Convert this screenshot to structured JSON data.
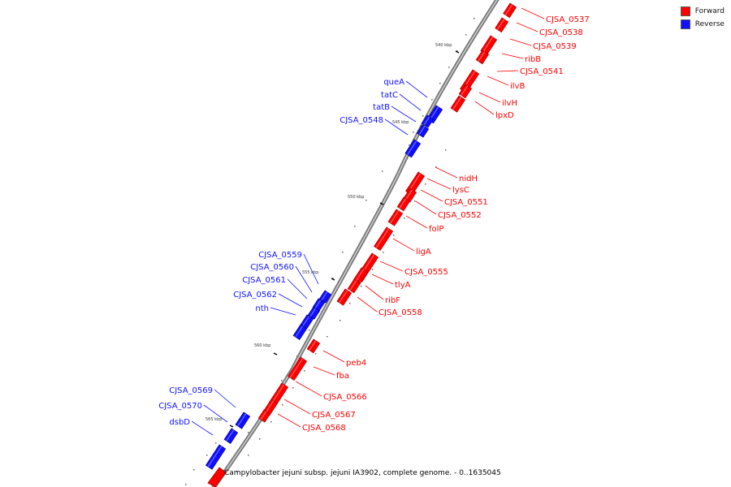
{
  "title": "Campylobacter jejuni subsp. jejuni IA3902, complete genome. - 0..1635045",
  "legend": [
    {
      "name": "Forward",
      "color": "#ff0000"
    },
    {
      "name": "Reverse",
      "color": "#1010ff"
    }
  ],
  "colors": {
    "forward": "#ff0000",
    "reverse": "#1010ff",
    "backbone": "#777777"
  },
  "ticks": [
    {
      "label": "540 kbp"
    },
    {
      "label": "545 kbp"
    },
    {
      "label": "550 kbp"
    },
    {
      "label": "555 kbp"
    },
    {
      "label": "560 kbp"
    },
    {
      "label": "565 kbp"
    }
  ],
  "genes": [
    {
      "name": "CJSA_0537",
      "strand": "forward"
    },
    {
      "name": "CJSA_0538",
      "strand": "forward"
    },
    {
      "name": "CJSA_0539",
      "strand": "forward"
    },
    {
      "name": "ribB",
      "strand": "forward"
    },
    {
      "name": "CJSA_0541",
      "strand": "forward"
    },
    {
      "name": "ilvB",
      "strand": "forward"
    },
    {
      "name": "ilvH",
      "strand": "forward"
    },
    {
      "name": "lpxD",
      "strand": "forward"
    },
    {
      "name": "queA",
      "strand": "reverse"
    },
    {
      "name": "tatC",
      "strand": "reverse"
    },
    {
      "name": "tatB",
      "strand": "reverse"
    },
    {
      "name": "CJSA_0548",
      "strand": "reverse"
    },
    {
      "name": "nidH",
      "strand": "forward"
    },
    {
      "name": "lysC",
      "strand": "forward"
    },
    {
      "name": "CJSA_0551",
      "strand": "forward"
    },
    {
      "name": "CJSA_0552",
      "strand": "forward"
    },
    {
      "name": "folP",
      "strand": "forward"
    },
    {
      "name": "ligA",
      "strand": "forward"
    },
    {
      "name": "CJSA_0555",
      "strand": "forward"
    },
    {
      "name": "tlyA",
      "strand": "forward"
    },
    {
      "name": "ribF",
      "strand": "forward"
    },
    {
      "name": "CJSA_0558",
      "strand": "forward"
    },
    {
      "name": "CJSA_0559",
      "strand": "reverse"
    },
    {
      "name": "CJSA_0560",
      "strand": "reverse"
    },
    {
      "name": "CJSA_0561",
      "strand": "reverse"
    },
    {
      "name": "CJSA_0562",
      "strand": "reverse"
    },
    {
      "name": "nth",
      "strand": "reverse"
    },
    {
      "name": "peb4",
      "strand": "forward"
    },
    {
      "name": "fba",
      "strand": "forward"
    },
    {
      "name": "CJSA_0566",
      "strand": "forward"
    },
    {
      "name": "CJSA_0567",
      "strand": "forward"
    },
    {
      "name": "CJSA_0568",
      "strand": "forward"
    },
    {
      "name": "CJSA_0569",
      "strand": "reverse"
    },
    {
      "name": "CJSA_0570",
      "strand": "reverse"
    },
    {
      "name": "dsbD",
      "strand": "reverse"
    }
  ]
}
